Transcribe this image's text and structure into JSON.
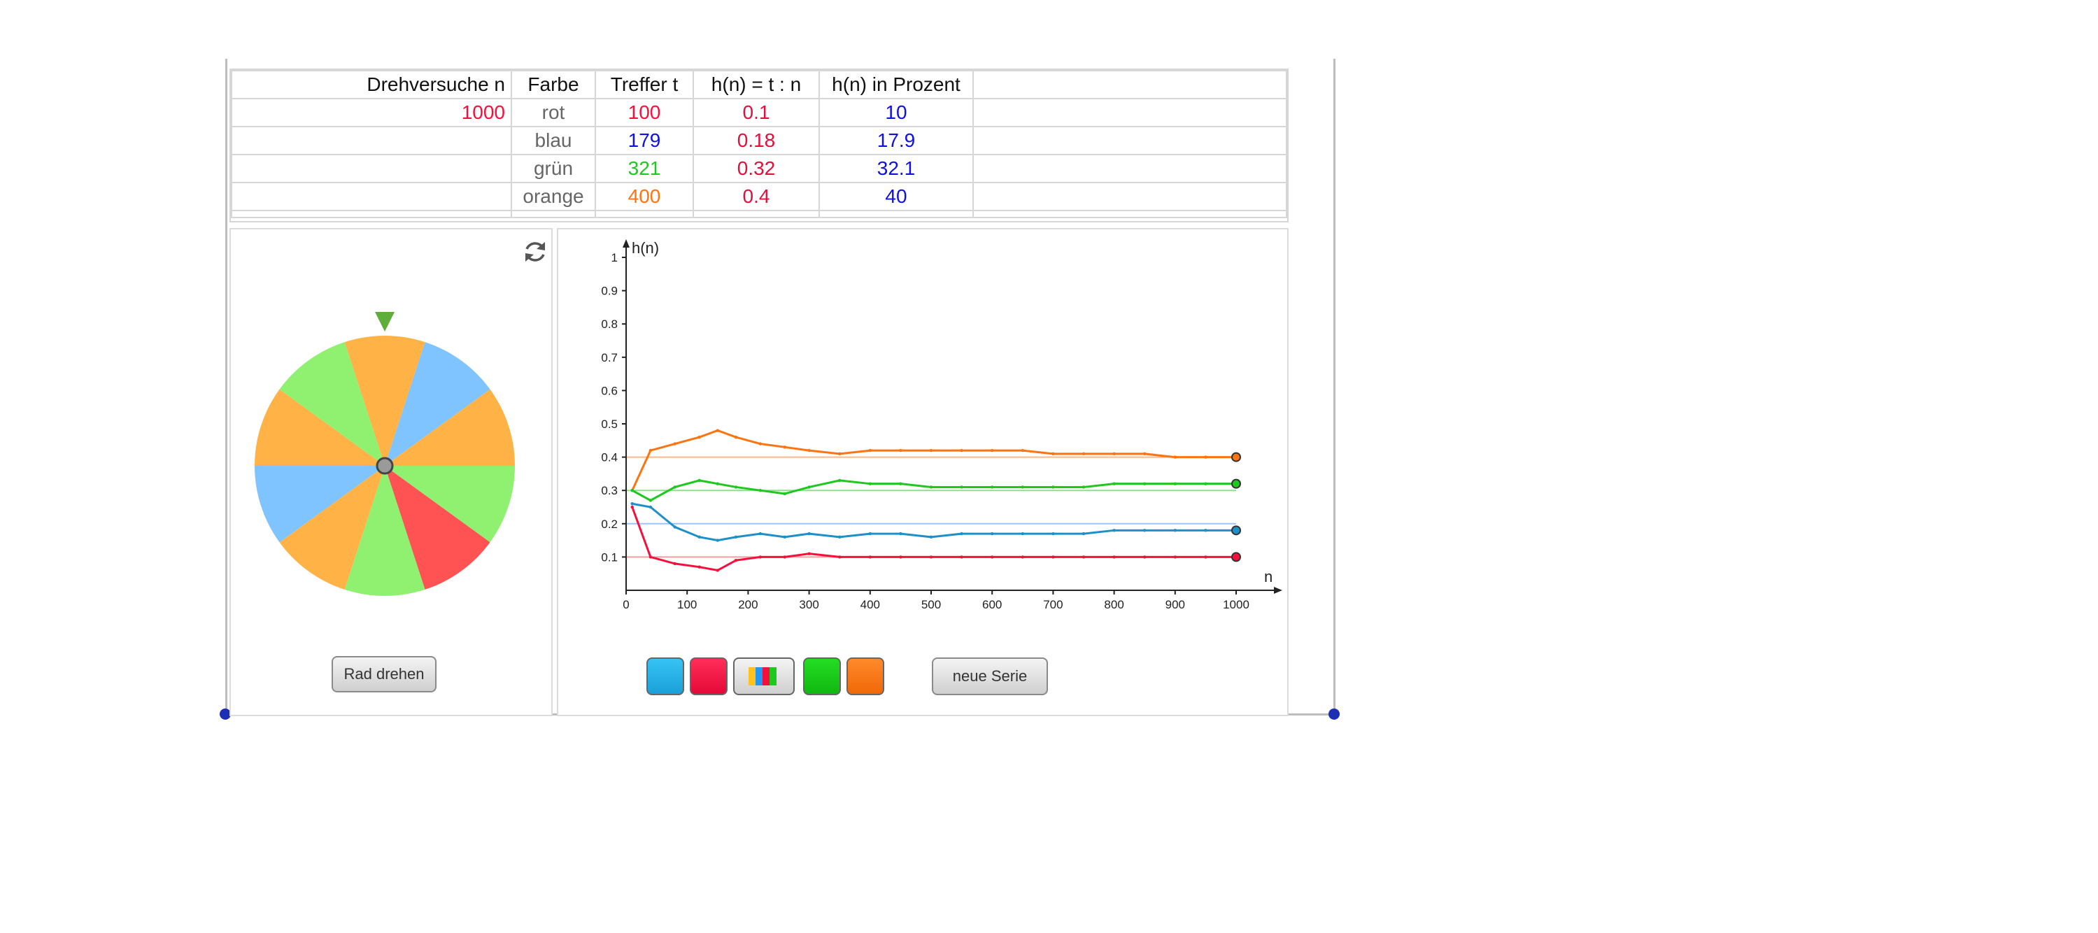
{
  "table": {
    "headers": [
      "Drehversuche n",
      "Farbe",
      "Treffer t",
      "h(n) = t : n",
      "h(n) in Prozent"
    ],
    "trials": "1000",
    "rows": [
      {
        "farbe": "rot",
        "treffer": "100",
        "hn": "0.1",
        "prozent": "10"
      },
      {
        "farbe": "blau",
        "treffer": "179",
        "hn": "0.18",
        "prozent": "17.9"
      },
      {
        "farbe": "grün",
        "treffer": "321",
        "hn": "0.32",
        "prozent": "32.1"
      },
      {
        "farbe": "orange",
        "treffer": "400",
        "hn": "0.4",
        "prozent": "40"
      }
    ]
  },
  "colors": {
    "rot": "#f5103c",
    "blau": "#1e90c9",
    "gruen": "#1ec81e",
    "orange": "#ff7410",
    "percent_text": "#1010e0",
    "wheel_orange": "#ffb347",
    "wheel_blue": "#7fc3ff",
    "wheel_green": "#90f070",
    "wheel_red": "#ff5353",
    "pointer": "#5fae3a"
  },
  "wheel": {
    "segments": [
      "orange",
      "blue",
      "orange",
      "green",
      "red",
      "green",
      "orange",
      "blue",
      "orange",
      "green"
    ],
    "button_label": "Rad drehen",
    "reset_icon": "refresh-icon"
  },
  "chart_data": {
    "type": "line",
    "ylabel": "h(n)",
    "xlabel": "n",
    "xlim": [
      0,
      1000
    ],
    "ylim": [
      0,
      1
    ],
    "x_ticks": [
      "0",
      "100",
      "200",
      "300",
      "400",
      "500",
      "600",
      "700",
      "800",
      "900",
      "1000"
    ],
    "y_ticks": [
      "0.1",
      "0.2",
      "0.3",
      "0.4",
      "0.5",
      "0.6",
      "0.7",
      "0.8",
      "0.9",
      "1"
    ],
    "reference_lines": [
      0.1,
      0.2,
      0.3,
      0.4
    ],
    "series": [
      {
        "key": "orange",
        "x": [
          10,
          40,
          80,
          120,
          150,
          180,
          220,
          260,
          300,
          350,
          400,
          450,
          500,
          550,
          600,
          650,
          700,
          750,
          800,
          850,
          900,
          950,
          1000
        ],
        "y": [
          0.3,
          0.42,
          0.44,
          0.46,
          0.48,
          0.46,
          0.44,
          0.43,
          0.42,
          0.41,
          0.42,
          0.42,
          0.42,
          0.42,
          0.42,
          0.42,
          0.41,
          0.41,
          0.41,
          0.41,
          0.4,
          0.4,
          0.4
        ]
      },
      {
        "key": "gruen",
        "x": [
          10,
          40,
          80,
          120,
          150,
          180,
          220,
          260,
          300,
          350,
          400,
          450,
          500,
          550,
          600,
          650,
          700,
          750,
          800,
          850,
          900,
          950,
          1000
        ],
        "y": [
          0.3,
          0.27,
          0.31,
          0.33,
          0.32,
          0.31,
          0.3,
          0.29,
          0.31,
          0.33,
          0.32,
          0.32,
          0.31,
          0.31,
          0.31,
          0.31,
          0.31,
          0.31,
          0.32,
          0.32,
          0.32,
          0.32,
          0.32
        ]
      },
      {
        "key": "blau",
        "x": [
          10,
          40,
          80,
          120,
          150,
          180,
          220,
          260,
          300,
          350,
          400,
          450,
          500,
          550,
          600,
          650,
          700,
          750,
          800,
          850,
          900,
          950,
          1000
        ],
        "y": [
          0.26,
          0.25,
          0.19,
          0.16,
          0.15,
          0.16,
          0.17,
          0.16,
          0.17,
          0.16,
          0.17,
          0.17,
          0.16,
          0.17,
          0.17,
          0.17,
          0.17,
          0.17,
          0.18,
          0.18,
          0.18,
          0.18,
          0.18
        ]
      },
      {
        "key": "rot",
        "x": [
          10,
          40,
          80,
          120,
          150,
          180,
          220,
          260,
          300,
          350,
          400,
          450,
          500,
          550,
          600,
          650,
          700,
          750,
          800,
          850,
          900,
          950,
          1000
        ],
        "y": [
          0.25,
          0.1,
          0.08,
          0.07,
          0.06,
          0.09,
          0.1,
          0.1,
          0.11,
          0.1,
          0.1,
          0.1,
          0.1,
          0.1,
          0.1,
          0.1,
          0.1,
          0.1,
          0.1,
          0.1,
          0.1,
          0.1,
          0.1
        ]
      }
    ]
  },
  "controls": {
    "color_buttons": [
      "blau",
      "rot",
      "all",
      "gruen",
      "orange"
    ],
    "new_series_label": "neue Serie"
  }
}
